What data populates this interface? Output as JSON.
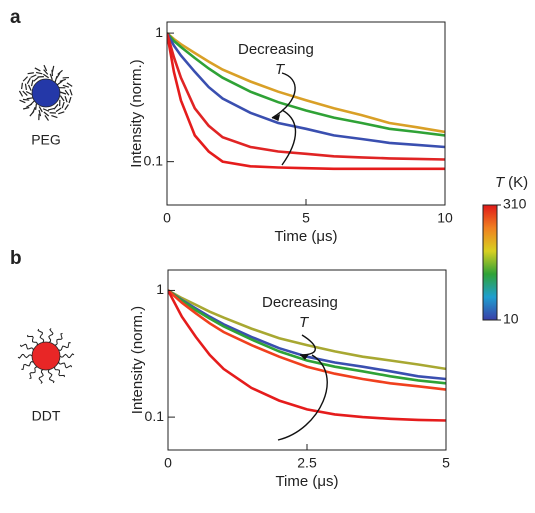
{
  "chart_data": [
    {
      "type": "line",
      "panel_label": "a",
      "icon_label": "PEG",
      "icon_color": "#2438a8",
      "x_label": "Time (μs)",
      "y_label": "Intensity (norm.)",
      "annotation": {
        "text": "Decreasing",
        "var": "T"
      },
      "log_y": true,
      "xlim": [
        0,
        10
      ],
      "ylim": [
        0.046,
        1.22
      ],
      "xticks": [
        0,
        5,
        10
      ],
      "yticks": [
        0.1,
        1
      ],
      "x": [
        0,
        0.25,
        0.5,
        1,
        1.5,
        2,
        3,
        4,
        5,
        6,
        7,
        8,
        9,
        10
      ],
      "series": [
        {
          "color": "#d9a027",
          "values": [
            1,
            0.9,
            0.82,
            0.7,
            0.6,
            0.52,
            0.42,
            0.35,
            0.3,
            0.26,
            0.23,
            0.2,
            0.185,
            0.17
          ]
        },
        {
          "color": "#2fa236",
          "values": [
            1,
            0.87,
            0.78,
            0.64,
            0.53,
            0.45,
            0.35,
            0.29,
            0.25,
            0.22,
            0.2,
            0.18,
            0.17,
            0.16
          ]
        },
        {
          "color": "#3a4fb0",
          "values": [
            1,
            0.8,
            0.67,
            0.5,
            0.38,
            0.31,
            0.24,
            0.2,
            0.18,
            0.16,
            0.15,
            0.14,
            0.135,
            0.13
          ]
        },
        {
          "color": "#e02424",
          "values": [
            1,
            0.65,
            0.45,
            0.26,
            0.19,
            0.155,
            0.13,
            0.12,
            0.115,
            0.11,
            0.108,
            0.106,
            0.105,
            0.104
          ]
        },
        {
          "color": "#e51c1c",
          "values": [
            1,
            0.5,
            0.3,
            0.16,
            0.12,
            0.1,
            0.092,
            0.09,
            0.089,
            0.088,
            0.088,
            0.088,
            0.088,
            0.088
          ]
        }
      ]
    },
    {
      "type": "line",
      "panel_label": "b",
      "icon_label": "DDT",
      "icon_color": "#e82626",
      "x_label": "Time (μs)",
      "y_label": "Intensity (norm.)",
      "annotation": {
        "text": "Decreasing",
        "var": "T"
      },
      "log_y": true,
      "xlim": [
        0,
        5
      ],
      "ylim": [
        0.055,
        1.45
      ],
      "xticks": [
        0,
        2.5,
        5
      ],
      "yticks": [
        0.1,
        1
      ],
      "x": [
        0,
        0.25,
        0.5,
        0.75,
        1,
        1.5,
        2,
        2.5,
        3,
        3.5,
        4,
        4.5,
        5
      ],
      "series": [
        {
          "color": "#a8a832",
          "values": [
            1,
            0.87,
            0.77,
            0.68,
            0.61,
            0.5,
            0.42,
            0.37,
            0.33,
            0.3,
            0.28,
            0.26,
            0.24
          ]
        },
        {
          "color": "#3a4fb0",
          "values": [
            1,
            0.84,
            0.72,
            0.62,
            0.54,
            0.43,
            0.35,
            0.3,
            0.27,
            0.25,
            0.23,
            0.21,
            0.2
          ]
        },
        {
          "color": "#2fa236",
          "values": [
            1,
            0.83,
            0.7,
            0.6,
            0.52,
            0.41,
            0.33,
            0.28,
            0.25,
            0.23,
            0.21,
            0.195,
            0.185
          ]
        },
        {
          "color": "#f0401e",
          "values": [
            1,
            0.8,
            0.66,
            0.55,
            0.47,
            0.37,
            0.3,
            0.25,
            0.22,
            0.2,
            0.185,
            0.175,
            0.165
          ]
        },
        {
          "color": "#e51c1c",
          "values": [
            1,
            0.62,
            0.43,
            0.31,
            0.24,
            0.17,
            0.135,
            0.115,
            0.105,
            0.1,
            0.097,
            0.095,
            0.094
          ]
        }
      ]
    }
  ],
  "colorbar": {
    "label_var": "T",
    "label_unit": "(K)",
    "range": [
      10,
      310
    ],
    "ticks": [
      310,
      10
    ],
    "colors": [
      "#3a3fa8",
      "#1f9fd0",
      "#2fa236",
      "#d8d020",
      "#f08020",
      "#e01818"
    ]
  }
}
